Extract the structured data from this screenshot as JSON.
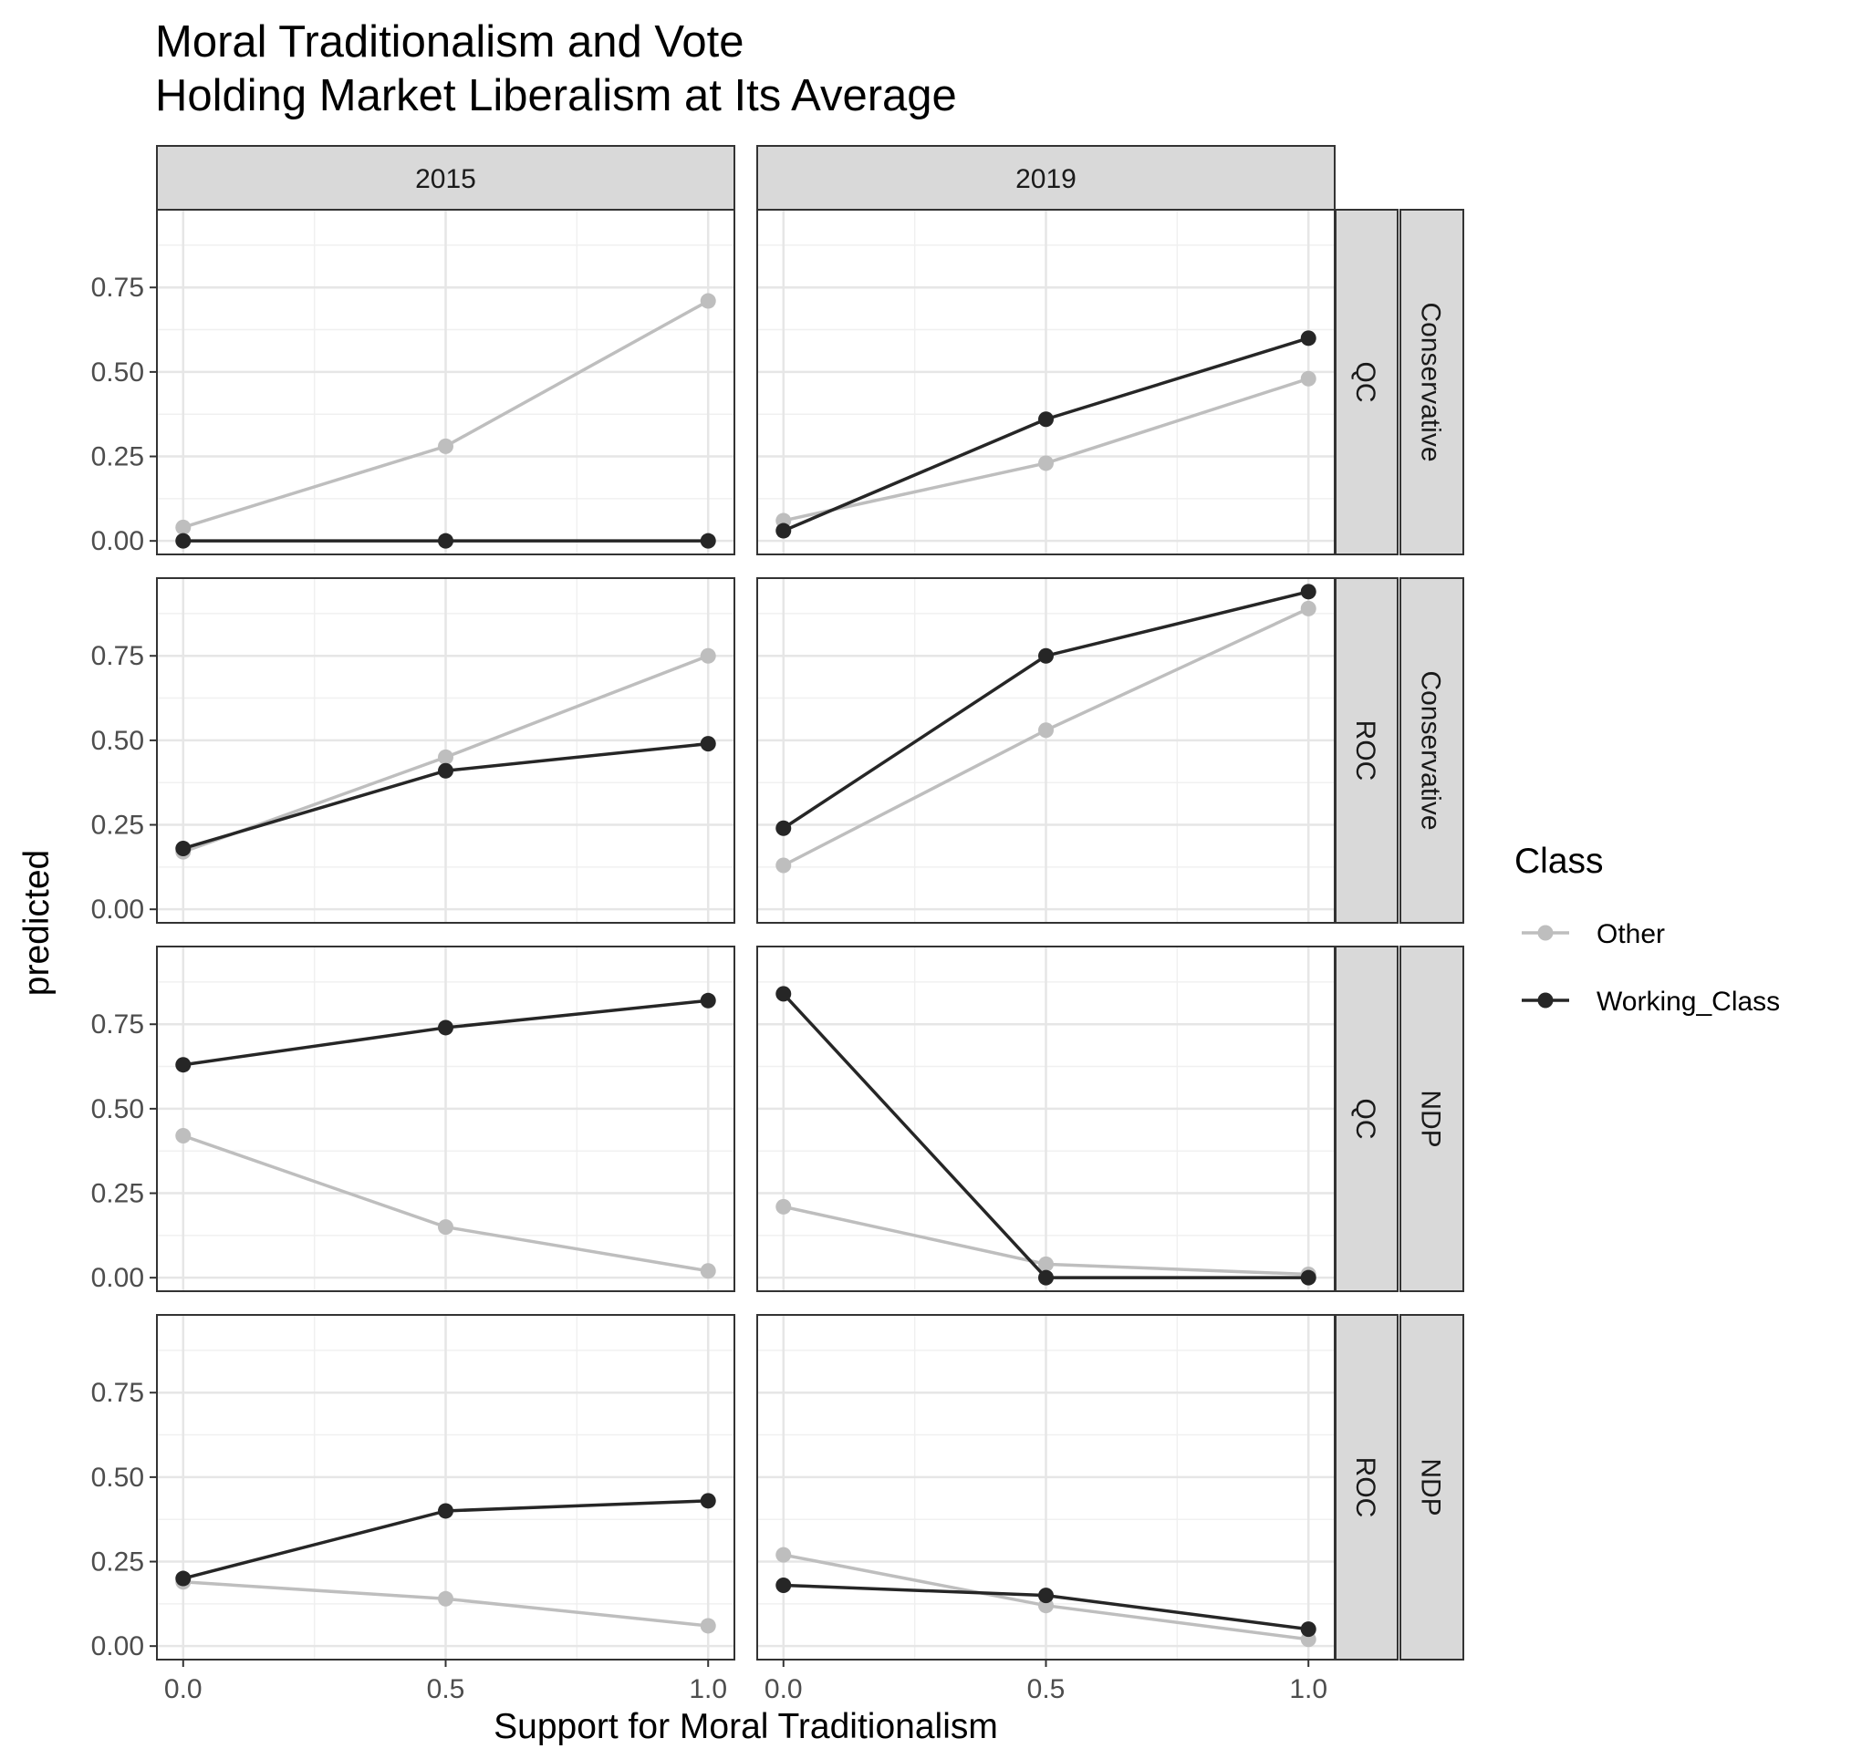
{
  "chart_data": {
    "type": "line",
    "title": "Moral Traditionalism and Vote",
    "subtitle": "Holding Market Liberalism at Its Average",
    "xlabel": "Support for Moral Traditionalism",
    "ylabel": "predicted",
    "x": [
      0.0,
      0.5,
      1.0
    ],
    "x_ticks": [
      "0.0",
      "0.5",
      "1.0"
    ],
    "y_ticks": [
      "0.00",
      "0.25",
      "0.50",
      "0.75"
    ],
    "xlim": [
      -0.05,
      1.05
    ],
    "ylim": [
      -0.04,
      0.98
    ],
    "grid": true,
    "legend": {
      "title": "Class",
      "placement": "right",
      "entries": [
        {
          "name": "Other",
          "color": "#bebebe"
        },
        {
          "name": "Working_Class",
          "color": "#262626"
        }
      ]
    },
    "columns": [
      "2015",
      "2019"
    ],
    "rows": [
      {
        "region": "QC",
        "party": "Conservative"
      },
      {
        "region": "ROC",
        "party": "Conservative"
      },
      {
        "region": "QC",
        "party": "NDP"
      },
      {
        "region": "ROC",
        "party": "NDP"
      }
    ],
    "panels": [
      {
        "row": 0,
        "col": 0,
        "series": [
          {
            "name": "Other",
            "values": [
              0.04,
              0.28,
              0.71
            ]
          },
          {
            "name": "Working_Class",
            "values": [
              0.0,
              0.0,
              0.0
            ]
          }
        ]
      },
      {
        "row": 0,
        "col": 1,
        "series": [
          {
            "name": "Other",
            "values": [
              0.06,
              0.23,
              0.48
            ]
          },
          {
            "name": "Working_Class",
            "values": [
              0.03,
              0.36,
              0.6
            ]
          }
        ]
      },
      {
        "row": 1,
        "col": 0,
        "series": [
          {
            "name": "Other",
            "values": [
              0.17,
              0.45,
              0.75
            ]
          },
          {
            "name": "Working_Class",
            "values": [
              0.18,
              0.41,
              0.49
            ]
          }
        ]
      },
      {
        "row": 1,
        "col": 1,
        "series": [
          {
            "name": "Other",
            "values": [
              0.13,
              0.53,
              0.89
            ]
          },
          {
            "name": "Working_Class",
            "values": [
              0.24,
              0.75,
              0.94
            ]
          }
        ]
      },
      {
        "row": 2,
        "col": 0,
        "series": [
          {
            "name": "Other",
            "values": [
              0.42,
              0.15,
              0.02
            ]
          },
          {
            "name": "Working_Class",
            "values": [
              0.63,
              0.74,
              0.82
            ]
          }
        ]
      },
      {
        "row": 2,
        "col": 1,
        "series": [
          {
            "name": "Other",
            "values": [
              0.21,
              0.04,
              0.01
            ]
          },
          {
            "name": "Working_Class",
            "values": [
              0.84,
              0.0,
              0.0
            ]
          }
        ]
      },
      {
        "row": 3,
        "col": 0,
        "series": [
          {
            "name": "Other",
            "values": [
              0.19,
              0.14,
              0.06
            ]
          },
          {
            "name": "Working_Class",
            "values": [
              0.2,
              0.4,
              0.43
            ]
          }
        ]
      },
      {
        "row": 3,
        "col": 1,
        "series": [
          {
            "name": "Other",
            "values": [
              0.27,
              0.12,
              0.02
            ]
          },
          {
            "name": "Working_Class",
            "values": [
              0.18,
              0.15,
              0.05
            ]
          }
        ]
      }
    ]
  }
}
